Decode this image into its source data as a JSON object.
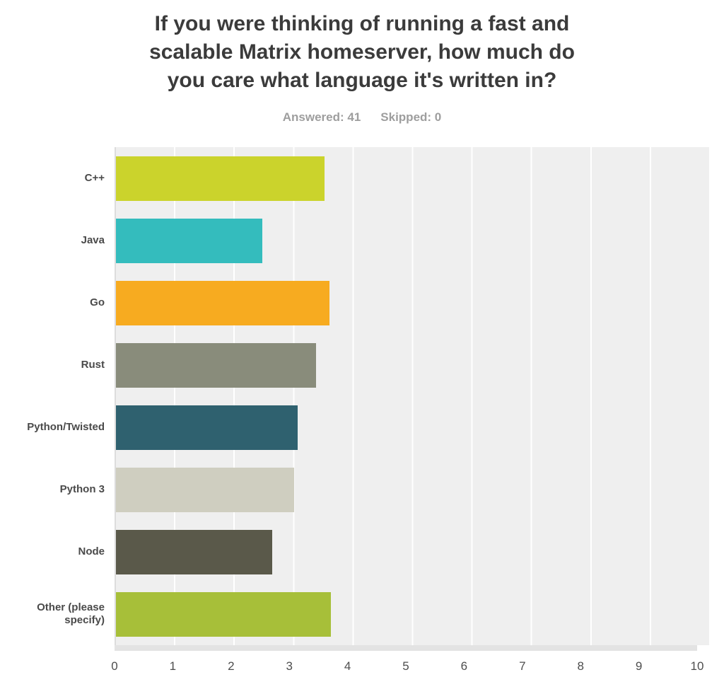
{
  "header": {
    "title": "If you were thinking of running a fast and scalable Matrix homeserver, how much do you care what language it's written in?",
    "title_lines": [
      "If you were thinking of running a fast and",
      "scalable Matrix homeserver, how much do",
      "you care what language it's written in?"
    ],
    "answered_label": "Answered: 41",
    "skipped_label": "Skipped: 0",
    "answered_count": 41,
    "skipped_count": 0
  },
  "chart_data": {
    "type": "bar",
    "orientation": "horizontal",
    "title": "If you were thinking of running a fast and scalable Matrix homeserver, how much do you care what language it's written in?",
    "categories": [
      "C++",
      "Java",
      "Go",
      "Rust",
      "Python/Twisted",
      "Python 3",
      "Node",
      "Other (please specify)"
    ],
    "values": [
      3.51,
      2.46,
      3.59,
      3.37,
      3.05,
      3.0,
      2.63,
      3.61
    ],
    "bar_colors": [
      "#cbd32c",
      "#34bcbd",
      "#f7ab20",
      "#898c7b",
      "#2f616f",
      "#cfcec0",
      "#5a594a",
      "#a7bf39"
    ],
    "xlabel": "",
    "ylabel": "",
    "xlim": [
      0,
      10
    ],
    "x_ticks": [
      0,
      1,
      2,
      3,
      4,
      5,
      6,
      7,
      8,
      9,
      10
    ],
    "grid": true,
    "legend": false
  },
  "colors": {
    "plot_background": "#efefef",
    "gridline": "#ffffff",
    "axis_line": "#dcdcdc",
    "axis_bottom_strip": "#e3e3e3",
    "category_label": "#4a4a4a",
    "tick_label": "#4d4d4d",
    "title_text": "#3b3b3b",
    "stats_text": "#9e9e9e"
  }
}
